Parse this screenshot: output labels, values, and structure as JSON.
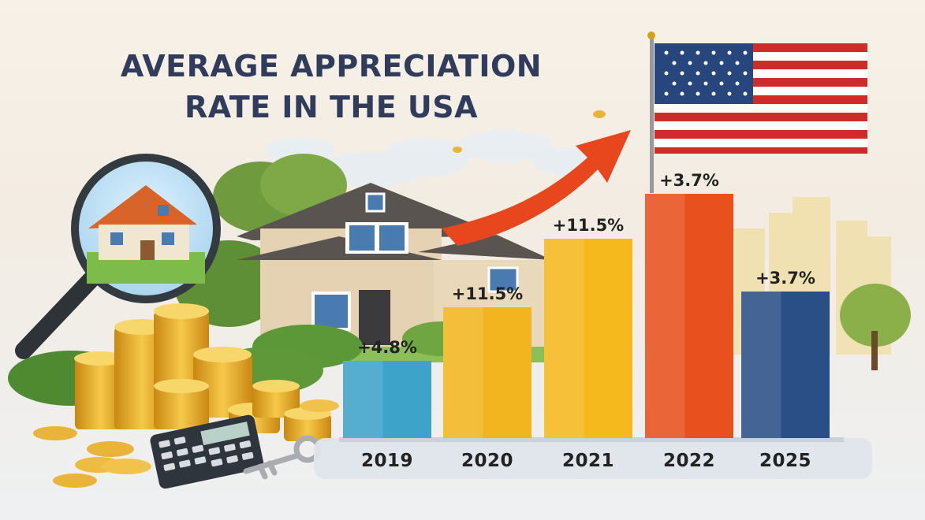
{
  "title": {
    "line1": "AVERAGE APPRECIATION",
    "line2": "RATE IN THE USA"
  },
  "icons": [
    "magnifying-glass-icon",
    "house-icon",
    "coins-icon",
    "calculator-icon",
    "keys-icon",
    "usa-flag-icon",
    "trend-arrow-icon"
  ],
  "colors": {
    "bar_2019": "#3ea3c9",
    "bar_2020": "#f2b51f",
    "bar_2021": "#f5b81d",
    "bar_2022": "#e8511e",
    "bar_2025": "#294f86",
    "arrow": "#e8461d",
    "title": "#2f3c5b"
  },
  "chart_data": {
    "type": "bar",
    "title": "AVERAGE APPRECIATION RATE IN THE USA",
    "categories": [
      "2019",
      "2020",
      "2021",
      "2022",
      "2025"
    ],
    "values": [
      4.8,
      11.5,
      11.5,
      3.7,
      3.7
    ],
    "data_labels": [
      "+4.8%",
      "+11.5%",
      "+11.5%",
      "+3.7%",
      "+3.7%"
    ],
    "xlabel": "",
    "ylabel": "",
    "grid": false,
    "legend": "none"
  }
}
